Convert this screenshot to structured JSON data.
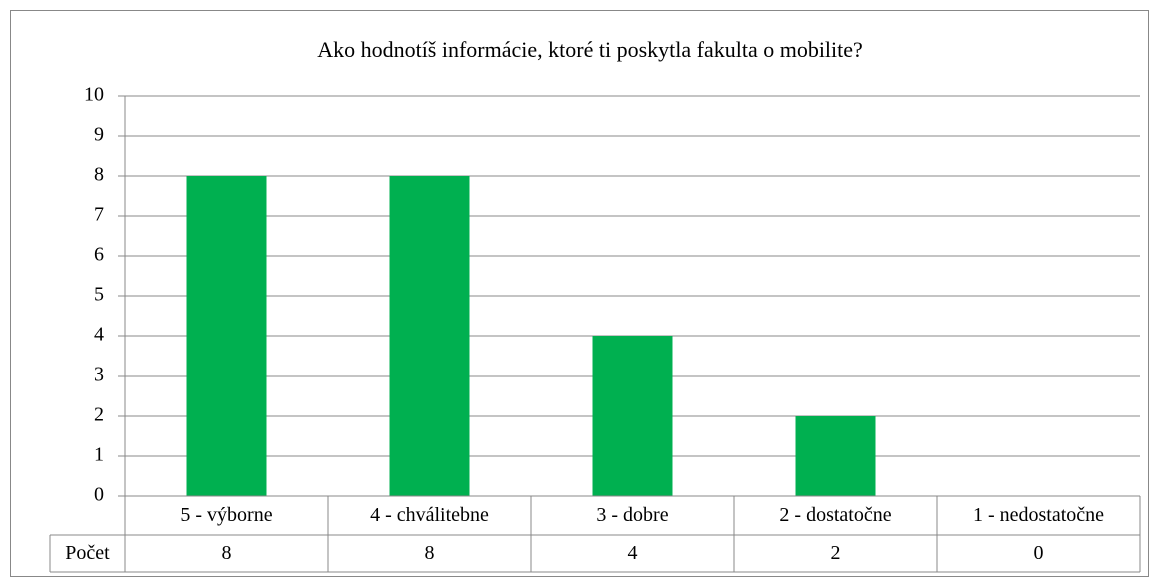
{
  "chart_data": {
    "type": "bar",
    "title": "Ako hodnotíš informácie, ktoré ti poskytla fakulta o mobilite?",
    "categories": [
      "5 - výborne",
      "4 - chválitebne",
      "3 - dobre",
      "2 - dostatočne",
      "1 - nedostatočne"
    ],
    "series": [
      {
        "name": "Počet",
        "color": "#00b050",
        "values": [
          8,
          8,
          4,
          2,
          0
        ]
      }
    ],
    "ylim": [
      0,
      10
    ],
    "yticks": [
      0,
      1,
      2,
      3,
      4,
      5,
      6,
      7,
      8,
      9,
      10
    ],
    "grid": true,
    "data_table": true
  }
}
